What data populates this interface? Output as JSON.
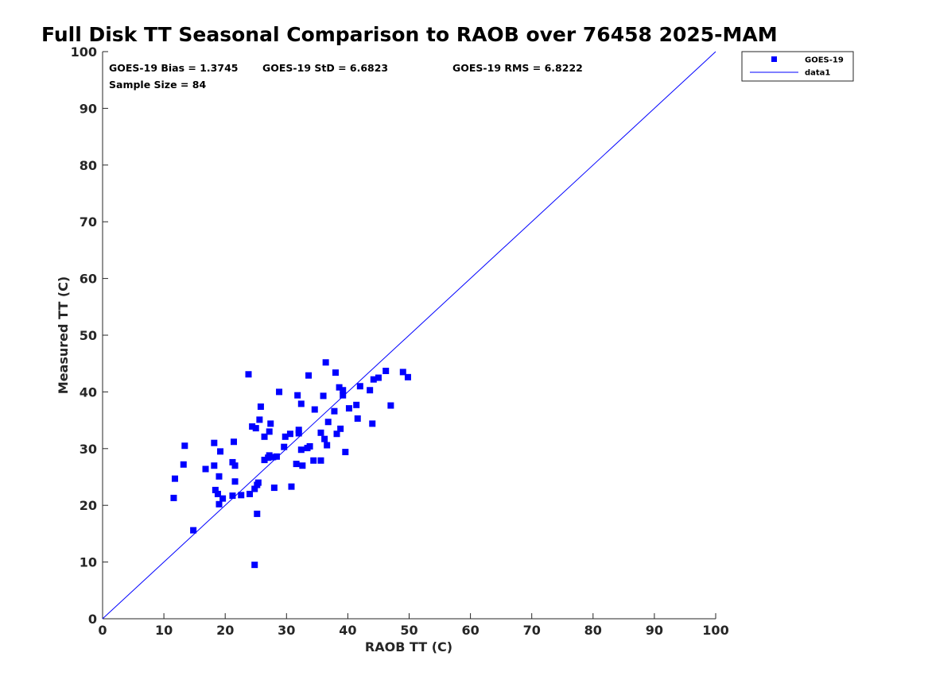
{
  "chart_data": {
    "type": "scatter",
    "title": "Full Disk TT Seasonal Comparison to RAOB over 76458 2025-MAM",
    "xlabel": "RAOB TT (C)",
    "ylabel": "Measured TT (C)",
    "xlim": [
      0,
      100
    ],
    "ylim": [
      0,
      100
    ],
    "xticks": [
      0,
      10,
      20,
      30,
      40,
      50,
      60,
      70,
      80,
      90,
      100
    ],
    "yticks": [
      0,
      10,
      20,
      30,
      40,
      50,
      60,
      70,
      80,
      90,
      100
    ],
    "grid": false,
    "legend_position": "top-right outside",
    "stats": {
      "bias": "GOES-19 Bias = 1.3745",
      "std": "GOES-19 StD = 6.6823",
      "rms": "GOES-19 RMS = 6.8222",
      "sample": "Sample Size = 84"
    },
    "series": [
      {
        "name": "GOES-19",
        "marker": "square",
        "color": "#0000FF",
        "points": [
          [
            11.6,
            21.3
          ],
          [
            11.8,
            24.7
          ],
          [
            13.2,
            27.2
          ],
          [
            13.4,
            30.5
          ],
          [
            14.8,
            15.6
          ],
          [
            16.8,
            26.4
          ],
          [
            18.2,
            31.0
          ],
          [
            18.2,
            27.0
          ],
          [
            18.4,
            22.7
          ],
          [
            18.8,
            22.0
          ],
          [
            19.0,
            25.1
          ],
          [
            19.0,
            20.2
          ],
          [
            19.2,
            29.5
          ],
          [
            19.6,
            21.2
          ],
          [
            21.2,
            27.6
          ],
          [
            21.2,
            21.7
          ],
          [
            21.4,
            31.2
          ],
          [
            21.6,
            27.0
          ],
          [
            21.6,
            24.2
          ],
          [
            23.8,
            43.1
          ],
          [
            24.0,
            22.0
          ],
          [
            24.4,
            33.9
          ],
          [
            24.8,
            22.9
          ],
          [
            24.8,
            9.5
          ],
          [
            25.0,
            33.6
          ],
          [
            25.2,
            23.6
          ],
          [
            25.2,
            18.5
          ],
          [
            25.4,
            24.0
          ],
          [
            25.6,
            35.1
          ],
          [
            25.8,
            37.4
          ],
          [
            26.4,
            32.1
          ],
          [
            26.4,
            28.0
          ],
          [
            27.0,
            28.4
          ],
          [
            27.2,
            33.0
          ],
          [
            27.2,
            28.8
          ],
          [
            27.4,
            34.4
          ],
          [
            27.8,
            28.5
          ],
          [
            28.0,
            23.1
          ],
          [
            28.4,
            28.6
          ],
          [
            28.8,
            40.0
          ],
          [
            29.6,
            30.3
          ],
          [
            29.8,
            32.1
          ],
          [
            30.6,
            32.6
          ],
          [
            30.8,
            23.3
          ],
          [
            31.6,
            27.3
          ],
          [
            31.8,
            39.4
          ],
          [
            32.0,
            32.7
          ],
          [
            32.0,
            33.3
          ],
          [
            32.4,
            37.9
          ],
          [
            32.4,
            29.8
          ],
          [
            32.6,
            27.0
          ],
          [
            33.4,
            30.1
          ],
          [
            33.6,
            42.9
          ],
          [
            33.8,
            30.4
          ],
          [
            34.4,
            27.9
          ],
          [
            34.6,
            36.9
          ],
          [
            35.6,
            32.8
          ],
          [
            35.6,
            27.9
          ],
          [
            36.0,
            39.3
          ],
          [
            36.2,
            31.7
          ],
          [
            36.4,
            45.2
          ],
          [
            36.6,
            30.6
          ],
          [
            36.8,
            34.7
          ],
          [
            37.8,
            36.6
          ],
          [
            38.0,
            43.4
          ],
          [
            38.2,
            32.6
          ],
          [
            38.6,
            40.8
          ],
          [
            38.8,
            33.5
          ],
          [
            39.2,
            40.3
          ],
          [
            39.2,
            39.4
          ],
          [
            39.6,
            29.4
          ],
          [
            40.2,
            37.1
          ],
          [
            41.4,
            37.7
          ],
          [
            41.6,
            35.3
          ],
          [
            42.0,
            41.0
          ],
          [
            43.6,
            40.3
          ],
          [
            44.0,
            34.4
          ],
          [
            44.2,
            42.2
          ],
          [
            45.0,
            42.5
          ],
          [
            46.2,
            43.7
          ],
          [
            47.0,
            37.6
          ],
          [
            49.0,
            43.5
          ],
          [
            49.8,
            42.6
          ],
          [
            22.6,
            21.8
          ]
        ]
      },
      {
        "name": "data1",
        "type": "line",
        "color": "#0000FF",
        "points": [
          [
            0,
            0
          ],
          [
            100,
            100
          ]
        ]
      }
    ]
  }
}
